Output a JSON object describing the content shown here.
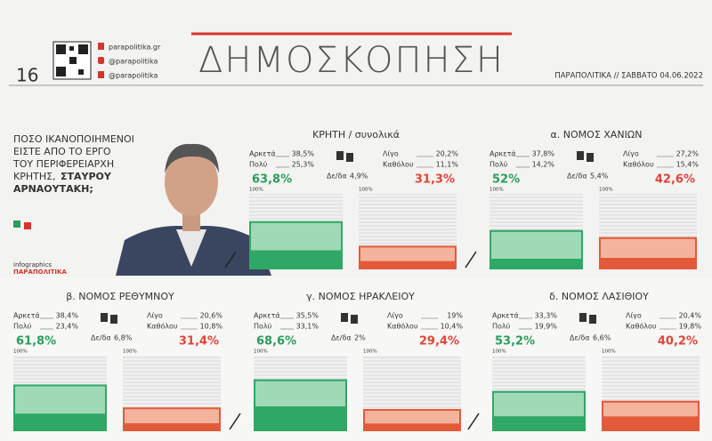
{
  "header": {
    "page_number": "16",
    "social": [
      "parapolitika.gr",
      "@parapolitika",
      "@parapolitika"
    ],
    "title": "ΔΗΜΟΣΚΟΠΗΣΗ",
    "publication": "ΠΑΡΑΠΟΛΙΤΙΚΑ // ΣΑΒΒΑΤΟ 04.06.2022"
  },
  "question": {
    "lines": [
      "ΠΟΣΟ ΙΚΑΝΟΠΟΙΗΜΕΝΟΙ",
      "ΕΙΣΤΕ ΑΠΟ ΤΟ ΕΡΓΟ",
      "ΤΟΥ ΠΕΡΙΦΕΡΕΙΑΡΧΗ",
      "ΚΡΗΤΗΣ,"
    ],
    "name_first": "ΣΤΑΥΡΟΥ",
    "name_last": "ΑΡΝΑΟΥΤΑΚΗ;"
  },
  "credit": {
    "label": "infographics",
    "brand": "ΠΑΡΑΠΟΛΙΤΙΚΑ"
  },
  "scale_label": "100%",
  "panels": [
    {
      "title": "ΚΡΗΤΗ / συνολικά",
      "positive": [
        {
          "label": "Αρκετά",
          "value": 38.5,
          "value_label": "38,5%"
        },
        {
          "label": "Πολύ",
          "value": 25.3,
          "value_label": "25,3%"
        }
      ],
      "positive_total": {
        "value": 63.8,
        "value_label": "63,8%"
      },
      "negative": [
        {
          "label": "Λίγο",
          "value": 20.2,
          "value_label": "20,2%"
        },
        {
          "label": "Καθόλου",
          "value": 11.1,
          "value_label": "11,1%"
        }
      ],
      "negative_total": {
        "value": 31.3,
        "value_label": "31,3%"
      },
      "dk": {
        "label": "Δε/δα",
        "value_label": "4,9%"
      }
    },
    {
      "title": "α. ΝΟΜΟΣ ΧΑΝΙΩΝ",
      "positive": [
        {
          "label": "Αρκετά",
          "value": 37.8,
          "value_label": "37,8%"
        },
        {
          "label": "Πολύ",
          "value": 14.2,
          "value_label": "14,2%"
        }
      ],
      "positive_total": {
        "value": 52,
        "value_label": "52%"
      },
      "negative": [
        {
          "label": "Λίγο",
          "value": 27.2,
          "value_label": "27,2%"
        },
        {
          "label": "Καθόλου",
          "value": 15.4,
          "value_label": "15,4%"
        }
      ],
      "negative_total": {
        "value": 42.6,
        "value_label": "42,6%"
      },
      "dk": {
        "label": "Δε/δα",
        "value_label": "5,4%"
      }
    },
    {
      "title": "β. ΝΟΜΟΣ ΡΕΘΥΜΝΟΥ",
      "positive": [
        {
          "label": "Αρκετά",
          "value": 38.4,
          "value_label": "38,4%"
        },
        {
          "label": "Πολύ",
          "value": 23.4,
          "value_label": "23,4%"
        }
      ],
      "positive_total": {
        "value": 61.8,
        "value_label": "61,8%"
      },
      "negative": [
        {
          "label": "Λίγο",
          "value": 20.6,
          "value_label": "20,6%"
        },
        {
          "label": "Καθόλου",
          "value": 10.8,
          "value_label": "10,8%"
        }
      ],
      "negative_total": {
        "value": 31.4,
        "value_label": "31,4%"
      },
      "dk": {
        "label": "Δε/δα",
        "value_label": "6,8%"
      }
    },
    {
      "title": "γ. ΝΟΜΟΣ ΗΡΑΚΛΕΙΟΥ",
      "positive": [
        {
          "label": "Αρκετά",
          "value": 35.5,
          "value_label": "35,5%"
        },
        {
          "label": "Πολύ",
          "value": 33.1,
          "value_label": "33,1%"
        }
      ],
      "positive_total": {
        "value": 68.6,
        "value_label": "68,6%"
      },
      "negative": [
        {
          "label": "Λίγο",
          "value": 19,
          "value_label": "19%"
        },
        {
          "label": "Καθόλου",
          "value": 10.4,
          "value_label": "10,4%"
        }
      ],
      "negative_total": {
        "value": 29.4,
        "value_label": "29,4%"
      },
      "dk": {
        "label": "Δε/δα",
        "value_label": "2%"
      }
    },
    {
      "title": "δ. ΝΟΜΟΣ ΛΑΣΙΘΙΟΥ",
      "positive": [
        {
          "label": "Αρκετά",
          "value": 33.3,
          "value_label": "33,3%"
        },
        {
          "label": "Πολύ",
          "value": 19.9,
          "value_label": "19,9%"
        }
      ],
      "positive_total": {
        "value": 53.2,
        "value_label": "53,2%"
      },
      "negative": [
        {
          "label": "Λίγο",
          "value": 20.4,
          "value_label": "20,4%"
        },
        {
          "label": "Καθόλου",
          "value": 19.8,
          "value_label": "19,8%"
        }
      ],
      "negative_total": {
        "value": 40.2,
        "value_label": "40,2%"
      },
      "dk": {
        "label": "Δε/δα",
        "value_label": "6,6%"
      }
    }
  ]
}
